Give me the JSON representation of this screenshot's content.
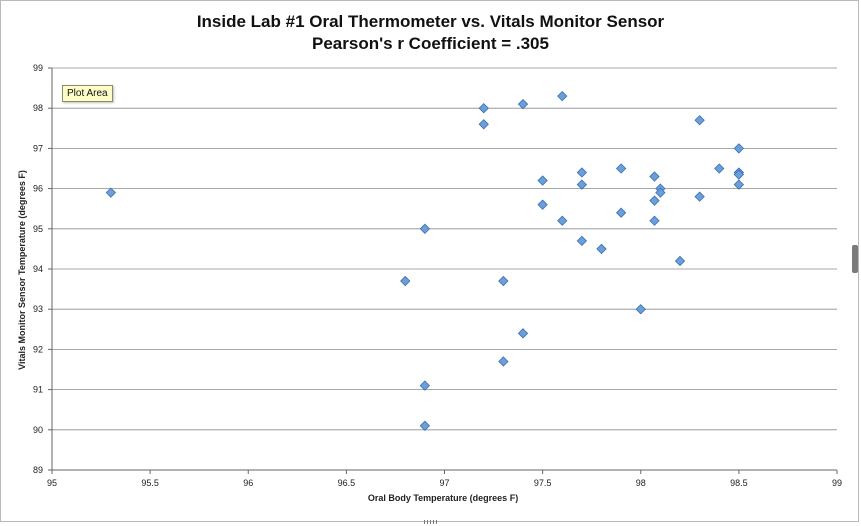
{
  "chart_data": {
    "type": "scatter",
    "title": "Inside Lab #1 Oral Thermometer vs. Vitals Monitor Sensor",
    "subtitle": "Pearson's r Coefficient = .305",
    "xlabel": "Oral Body Temperature (degrees F)",
    "ylabel": "Vitals Monitor Sensor Temperature (degrees F)",
    "xlim": [
      95,
      99
    ],
    "ylim": [
      89,
      99
    ],
    "x_ticks": [
      "95",
      "95.5",
      "96",
      "96.5",
      "97",
      "97.5",
      "98",
      "98.5",
      "99"
    ],
    "y_ticks": [
      "89",
      "90",
      "91",
      "92",
      "93",
      "94",
      "95",
      "96",
      "97",
      "98",
      "99"
    ],
    "grid": true,
    "marker": "diamond",
    "marker_color": "#6b9fd9",
    "marker_stroke": "#3c6fb0",
    "points": [
      {
        "x": 95.3,
        "y": 95.9
      },
      {
        "x": 96.8,
        "y": 93.7
      },
      {
        "x": 96.9,
        "y": 95.0
      },
      {
        "x": 96.9,
        "y": 91.1
      },
      {
        "x": 96.9,
        "y": 90.1
      },
      {
        "x": 97.2,
        "y": 98.0
      },
      {
        "x": 97.2,
        "y": 97.6
      },
      {
        "x": 97.3,
        "y": 93.7
      },
      {
        "x": 97.3,
        "y": 91.7
      },
      {
        "x": 97.4,
        "y": 98.1
      },
      {
        "x": 97.4,
        "y": 92.4
      },
      {
        "x": 97.5,
        "y": 96.2
      },
      {
        "x": 97.5,
        "y": 95.6
      },
      {
        "x": 97.6,
        "y": 98.3
      },
      {
        "x": 97.6,
        "y": 95.2
      },
      {
        "x": 97.7,
        "y": 96.4
      },
      {
        "x": 97.7,
        "y": 96.1
      },
      {
        "x": 97.7,
        "y": 94.7
      },
      {
        "x": 97.8,
        "y": 94.5
      },
      {
        "x": 97.9,
        "y": 96.5
      },
      {
        "x": 97.9,
        "y": 95.4
      },
      {
        "x": 98.0,
        "y": 93.0
      },
      {
        "x": 98.07,
        "y": 96.3
      },
      {
        "x": 98.07,
        "y": 95.7
      },
      {
        "x": 98.07,
        "y": 95.2
      },
      {
        "x": 98.1,
        "y": 96.0
      },
      {
        "x": 98.1,
        "y": 95.9
      },
      {
        "x": 98.2,
        "y": 94.2
      },
      {
        "x": 98.3,
        "y": 97.7
      },
      {
        "x": 98.3,
        "y": 95.8
      },
      {
        "x": 98.4,
        "y": 96.5
      },
      {
        "x": 98.5,
        "y": 97.0
      },
      {
        "x": 98.5,
        "y": 96.4
      },
      {
        "x": 98.5,
        "y": 96.35
      },
      {
        "x": 98.5,
        "y": 96.1
      }
    ]
  },
  "tooltip": {
    "text": "Plot Area"
  }
}
